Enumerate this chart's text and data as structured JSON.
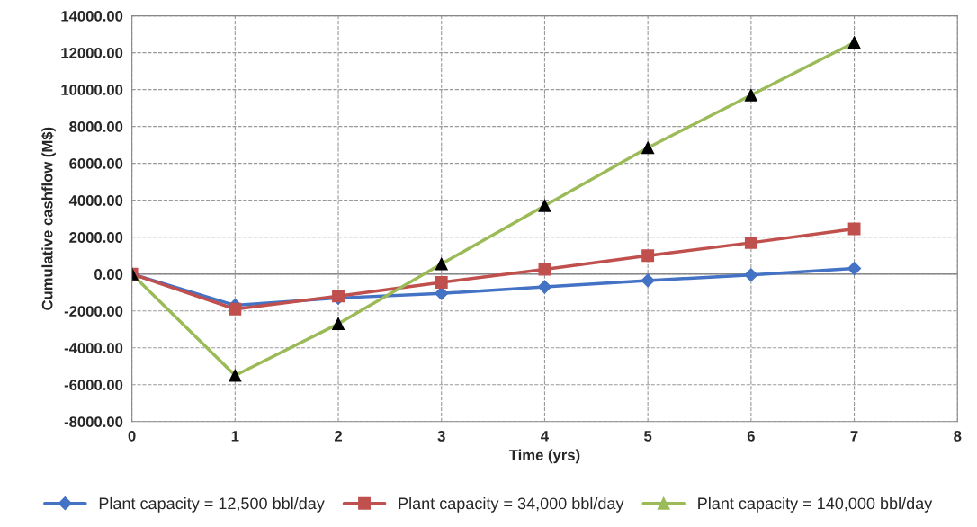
{
  "chart_data": {
    "type": "line",
    "xlabel": "Time (yrs)",
    "ylabel": "Cumulative cashflow (M$)",
    "x": [
      0,
      1,
      2,
      3,
      4,
      5,
      6,
      7
    ],
    "series": [
      {
        "name": "Plant capacity = 12,500 bbl/day",
        "color": "#4472c4",
        "marker": "diamond",
        "values": [
          0,
          -1700,
          -1300,
          -1050,
          -700,
          -350,
          -50,
          300
        ]
      },
      {
        "name": "Plant capacity = 34,000 bbl/day",
        "color": "#c0504d",
        "marker": "square",
        "values": [
          0,
          -1900,
          -1200,
          -450,
          250,
          1000,
          1700,
          2450
        ]
      },
      {
        "name": "Plant capacity = 140,000 bbl/day",
        "color": "#9bbb59",
        "marker": "triangle",
        "values": [
          0,
          -5500,
          -2700,
          550,
          3700,
          6850,
          9700,
          12550
        ]
      }
    ],
    "xlim": [
      0,
      8
    ],
    "xticks": [
      0,
      1,
      2,
      3,
      4,
      5,
      6,
      7,
      8
    ],
    "ylim": [
      -8000,
      14000
    ],
    "yticks": [
      {
        "value": -8000,
        "label": "-8000.00"
      },
      {
        "value": -6000,
        "label": "-6000.00"
      },
      {
        "value": -4000,
        "label": "-4000.00"
      },
      {
        "value": -2000,
        "label": "-2000.00"
      },
      {
        "value": 0,
        "label": "0.00"
      },
      {
        "value": 2000,
        "label": "2000.00"
      },
      {
        "value": 4000,
        "label": "4000.00"
      },
      {
        "value": 6000,
        "label": "6000.00"
      },
      {
        "value": 8000,
        "label": "8000.00"
      },
      {
        "value": 10000,
        "label": "10000.00"
      },
      {
        "value": 12000,
        "label": "12000.00"
      },
      {
        "value": 14000,
        "label": "14000.00"
      }
    ],
    "ref_lines": [
      {
        "axis": "y",
        "value": 0,
        "color": "#888888"
      }
    ],
    "grid": true,
    "legend": "bottom"
  }
}
